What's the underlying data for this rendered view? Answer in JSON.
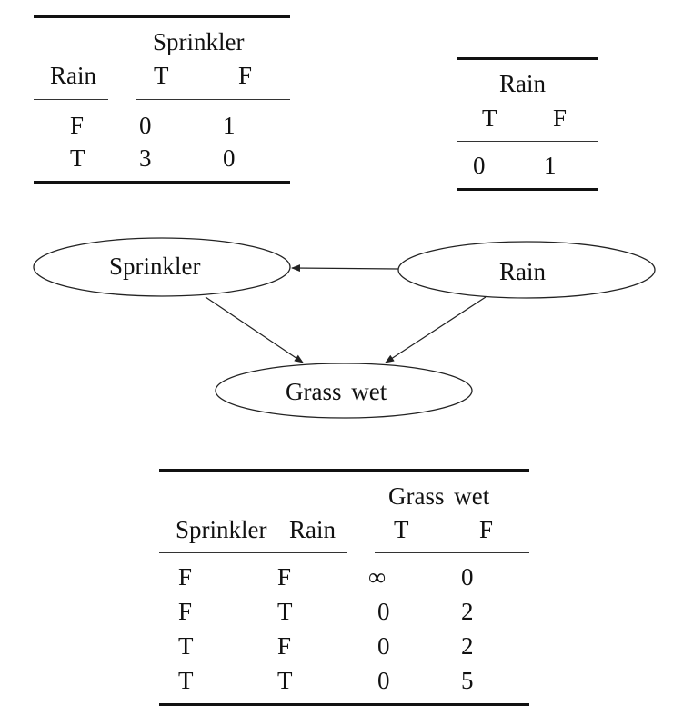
{
  "sprinkler_cpt": {
    "group_header": "Sprinkler",
    "row_var": "Rain",
    "col_values": [
      "T",
      "F"
    ],
    "rows": [
      {
        "label": "F",
        "values": [
          "0",
          "1"
        ]
      },
      {
        "label": "T",
        "values": [
          "3",
          "0"
        ]
      }
    ]
  },
  "rain_cpt": {
    "group_header": "Rain",
    "col_values": [
      "T",
      "F"
    ],
    "values": [
      "0",
      "1"
    ]
  },
  "graph": {
    "nodes": {
      "sprinkler": "Sprinkler",
      "rain": "Rain",
      "grass": "Grass wet"
    }
  },
  "grass_cpt": {
    "group_header": "Grass wet",
    "row_vars": [
      "Sprinkler",
      "Rain"
    ],
    "col_values": [
      "T",
      "F"
    ],
    "rows": [
      {
        "labels": [
          "F",
          "F"
        ],
        "values": [
          "∞",
          "0"
        ]
      },
      {
        "labels": [
          "F",
          "T"
        ],
        "values": [
          "0",
          "2"
        ]
      },
      {
        "labels": [
          "T",
          "F"
        ],
        "values": [
          "0",
          "2"
        ]
      },
      {
        "labels": [
          "T",
          "T"
        ],
        "values": [
          "0",
          "5"
        ]
      }
    ]
  }
}
